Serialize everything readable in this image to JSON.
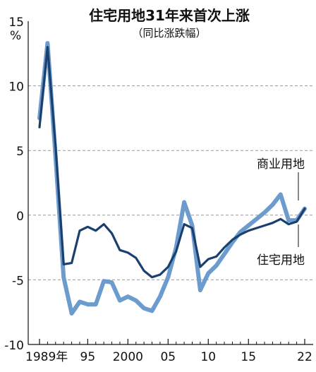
{
  "chart_data": {
    "type": "line",
    "title": "住宅用地31年来首次上涨",
    "subtitle": "（同比涨跌幅）",
    "ylabel": "%",
    "ylim": [
      -10,
      15
    ],
    "y_ticks": [
      15,
      10,
      5,
      0,
      -5,
      -10
    ],
    "x_tick_labels": [
      {
        "year": 1989,
        "label": "1989年"
      },
      {
        "year": 1995,
        "label": "95"
      },
      {
        "year": 2000,
        "label": "2000"
      },
      {
        "year": 2005,
        "label": "05"
      },
      {
        "year": 2010,
        "label": "10"
      },
      {
        "year": 2015,
        "label": "15"
      },
      {
        "year": 2022,
        "label": "22"
      }
    ],
    "x_minor_ticks": [
      1990,
      1991,
      1992,
      1993,
      1994,
      1996,
      1997,
      1998,
      1999,
      2001,
      2002,
      2003,
      2004,
      2006,
      2007,
      2008,
      2009,
      2011,
      2012,
      2013,
      2014,
      2016,
      2017,
      2018,
      2019,
      2020,
      2021
    ],
    "xlim": [
      1989,
      2022
    ],
    "grid": "horizontal dashed",
    "series": [
      {
        "name": "商业用地",
        "color": "#6b9ccd",
        "x": [
          1989,
          1990,
          1991,
          1992,
          1993,
          1994,
          1995,
          1996,
          1997,
          1998,
          1999,
          2000,
          2001,
          2002,
          2003,
          2004,
          2005,
          2006,
          2007,
          2008,
          2009,
          2010,
          2011,
          2012,
          2013,
          2014,
          2015,
          2016,
          2017,
          2018,
          2019,
          2020,
          2021,
          2022
        ],
        "values": [
          7.5,
          13.3,
          4.5,
          -4.8,
          -7.6,
          -6.7,
          -6.9,
          -6.9,
          -5.1,
          -5.2,
          -6.6,
          -6.3,
          -6.6,
          -7.2,
          -7.4,
          -6.3,
          -4.8,
          -2.5,
          1.0,
          -0.8,
          -5.8,
          -4.5,
          -3.9,
          -3.0,
          -2.1,
          -1.3,
          -0.8,
          -0.3,
          0.2,
          0.8,
          1.6,
          -0.4,
          -0.4,
          0.5
        ]
      },
      {
        "name": "住宅用地",
        "color": "#1b3f6e",
        "x": [
          1989,
          1990,
          1991,
          1992,
          1993,
          1994,
          1995,
          1996,
          1997,
          1998,
          1999,
          2000,
          2001,
          2002,
          2003,
          2004,
          2005,
          2006,
          2007,
          2008,
          2009,
          2010,
          2011,
          2012,
          2013,
          2014,
          2015,
          2016,
          2017,
          2018,
          2019,
          2020,
          2021,
          2022
        ],
        "values": [
          6.8,
          13.0,
          5.3,
          -3.8,
          -3.7,
          -1.2,
          -0.9,
          -1.2,
          -0.7,
          -1.4,
          -2.7,
          -2.9,
          -3.3,
          -4.3,
          -4.8,
          -4.6,
          -4.0,
          -2.8,
          -0.7,
          -1.0,
          -4.0,
          -3.4,
          -3.2,
          -2.5,
          -1.9,
          -1.5,
          -1.2,
          -1.0,
          -0.8,
          -0.6,
          -0.3,
          -0.7,
          -0.5,
          0.5
        ]
      }
    ]
  }
}
